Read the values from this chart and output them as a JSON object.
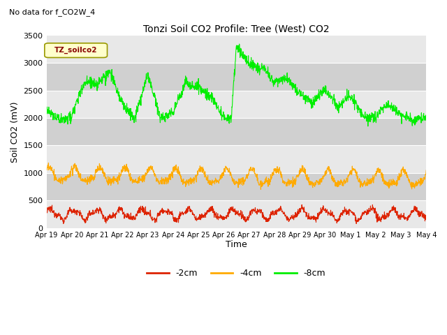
{
  "title": "Tonzi Soil CO2 Profile: Tree (West) CO2",
  "subtitle": "No data for f_CO2W_4",
  "ylabel": "Soil CO2 (mV)",
  "xlabel": "Time",
  "legend_label": "TZ_soilco2",
  "series_labels": [
    "-2cm",
    "-4cm",
    "-8cm"
  ],
  "series_colors": [
    "#dd2200",
    "#ffaa00",
    "#00ee00"
  ],
  "ylim": [
    0,
    3500
  ],
  "band_color_light": "#e8e8e8",
  "band_color_dark": "#d0d0d0",
  "xtick_labels": [
    "Apr 19",
    "Apr 20",
    "Apr 21",
    "Apr 22",
    "Apr 23",
    "Apr 24",
    "Apr 25",
    "Apr 26",
    "Apr 27",
    "Apr 28",
    "Apr 29",
    "Apr 30",
    "May 1",
    "May 2",
    "May 3",
    "May 4"
  ],
  "ytick_values": [
    0,
    500,
    1000,
    1500,
    2000,
    2500,
    3000,
    3500
  ],
  "band_edges": [
    0,
    500,
    1000,
    1500,
    2000,
    2500,
    3000,
    3500
  ]
}
